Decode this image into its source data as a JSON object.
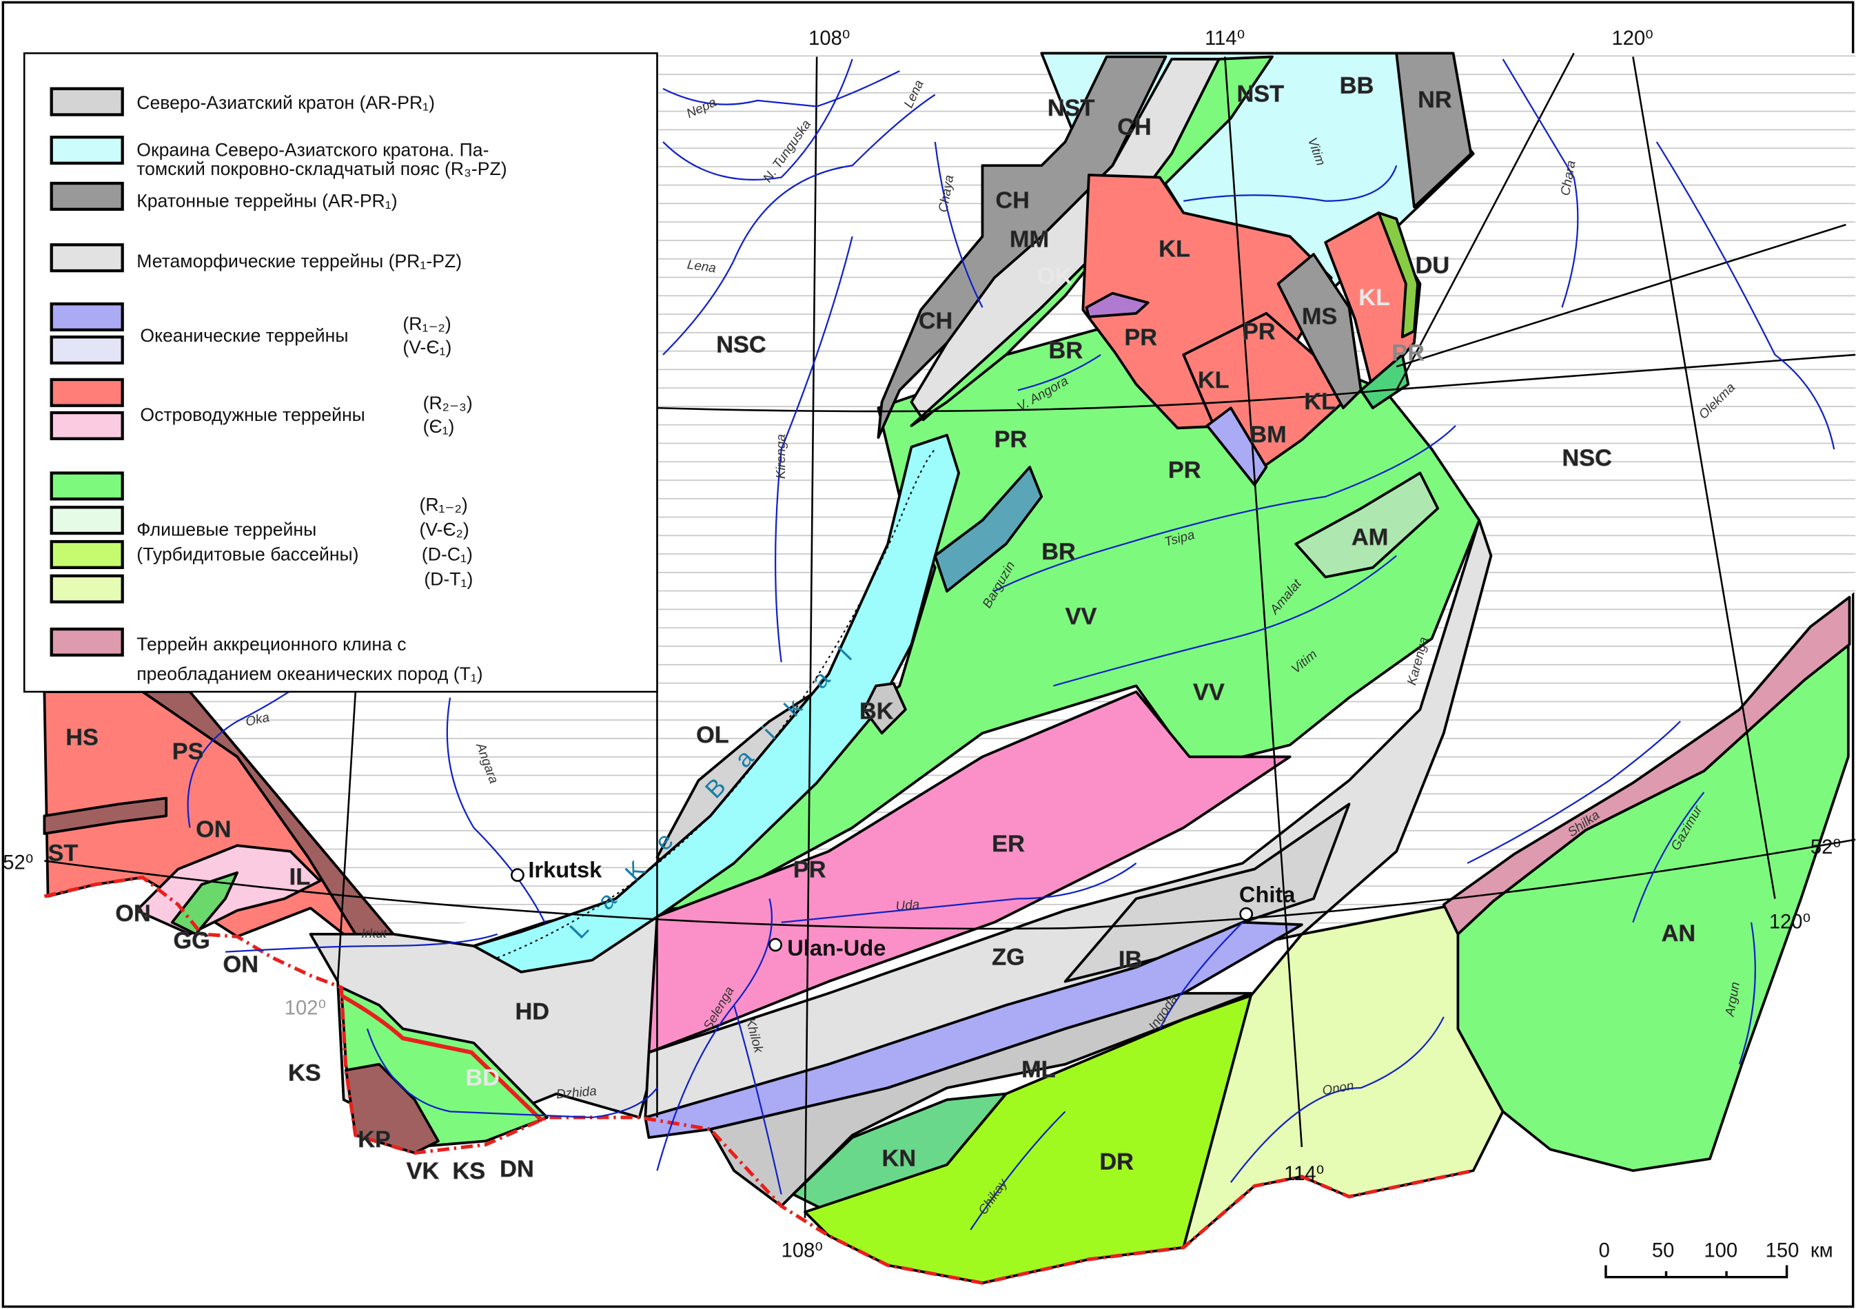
{
  "legend": {
    "items": [
      {
        "text": "Северо-Азиатский кратон (AR-PR₁)",
        "colors": [
          "#d4d4d4"
        ]
      },
      {
        "text": "Окраина Северо-Азиатского кратона. Па-",
        "text2": "томский покровно-складчатый пояс (R₃-PZ)",
        "colors": [
          "#ccfcfc"
        ]
      },
      {
        "text": "Кратонные террейны (AR-PR₁)",
        "colors": [
          "#999999"
        ]
      },
      {
        "text": "Метаморфические террейны (PR₁-PZ)",
        "colors": [
          "#e2e2e2"
        ]
      },
      {
        "text": "Океанические террейны",
        "ages": [
          "(R₁₋₂)",
          "(V-Є₁)"
        ],
        "colors": [
          "#aaaaf5",
          "#e4e4f7"
        ]
      },
      {
        "text": "Островодужные террейны",
        "ages": [
          "(R₂₋₃)",
          "(Є₁)"
        ],
        "colors": [
          "#ff7f78",
          "#fbcbe2"
        ]
      },
      {
        "text": "Флишевые террейны",
        "text2": "(Турбидитовые бассейны)",
        "ages": [
          "(R₁₋₂)",
          "(V-Є₂)",
          "(D-C₁)",
          "(D-T₁)"
        ],
        "colors": [
          "#7dfa7d",
          "#e6fbe6",
          "#c6fb70",
          "#e6fcb4"
        ]
      },
      {
        "text": "Террейн аккреционного клина с",
        "text2": "преобладанием океанических пород (T₁)",
        "colors": [
          "#de9aae"
        ]
      }
    ]
  },
  "colors": {
    "craton": "#d4d4d4",
    "margin": "#aefcfc",
    "cratonic": "#999999",
    "metamorphic": "#e2e2e2",
    "oceanic": "#aaaaf5",
    "oceanic_light": "#e4e4f7",
    "island_arc": "#ff7f78",
    "island_arc_light": "#fbcbe2",
    "flysch": "#7dfa7d",
    "flysch_light": "#e6fbe6",
    "turbidite": "#a0fa20",
    "turbidite_light": "#e6fcb4",
    "accretion": "#de9aae",
    "river": "#1020c8",
    "border": "#e8201c"
  },
  "terranes": [
    "HS",
    "PS",
    "ON",
    "ST",
    "IL",
    "ON",
    "GG",
    "ON",
    "KS",
    "KP",
    "VK",
    "KS",
    "DN",
    "BD",
    "HD",
    "OL",
    "BK",
    "PR",
    "ER",
    "ZG",
    "IB",
    "ML",
    "KN",
    "DR",
    "AN",
    "VV",
    "VV",
    "BR",
    "AM",
    "PR",
    "BM",
    "KL",
    "KL",
    "PR",
    "MS",
    "KL",
    "DU",
    "PR",
    "PR",
    "BR",
    "KL",
    "MM",
    "CH",
    "CH",
    "NST",
    "CH",
    "NST",
    "BB",
    "NR",
    "NSC",
    "NSC",
    "PR",
    "OK"
  ],
  "rivers": [
    "Nepa",
    "N. Tunguska",
    "Lena",
    "Lena",
    "Chaya",
    "Kirenga",
    "Vitim",
    "Vitim",
    "Chara",
    "Olekma",
    "V. Angora",
    "Barguzin",
    "Tsipa",
    "Amalat",
    "Karenga",
    "Oka",
    "Angara",
    "Irkut",
    "Dzhida",
    "Selenga",
    "Khilok",
    "Uda",
    "Ingoda",
    "Chikay",
    "Onon",
    "Shilka",
    "Gazimur",
    "Argun"
  ],
  "lake": "LaKe Baikal",
  "cities": [
    "Irkutsk",
    "Ulan-Ude",
    "Chita"
  ],
  "graticule": {
    "top": [
      "108⁰",
      "114⁰",
      "120⁰"
    ],
    "left": "52⁰",
    "right": "52⁰",
    "lon102": "102⁰",
    "bottom108": "108⁰",
    "bottom114": "114⁰",
    "right120": "120⁰"
  },
  "scale": {
    "ticks": [
      "0",
      "50",
      "100",
      "150"
    ],
    "unit": "км"
  }
}
